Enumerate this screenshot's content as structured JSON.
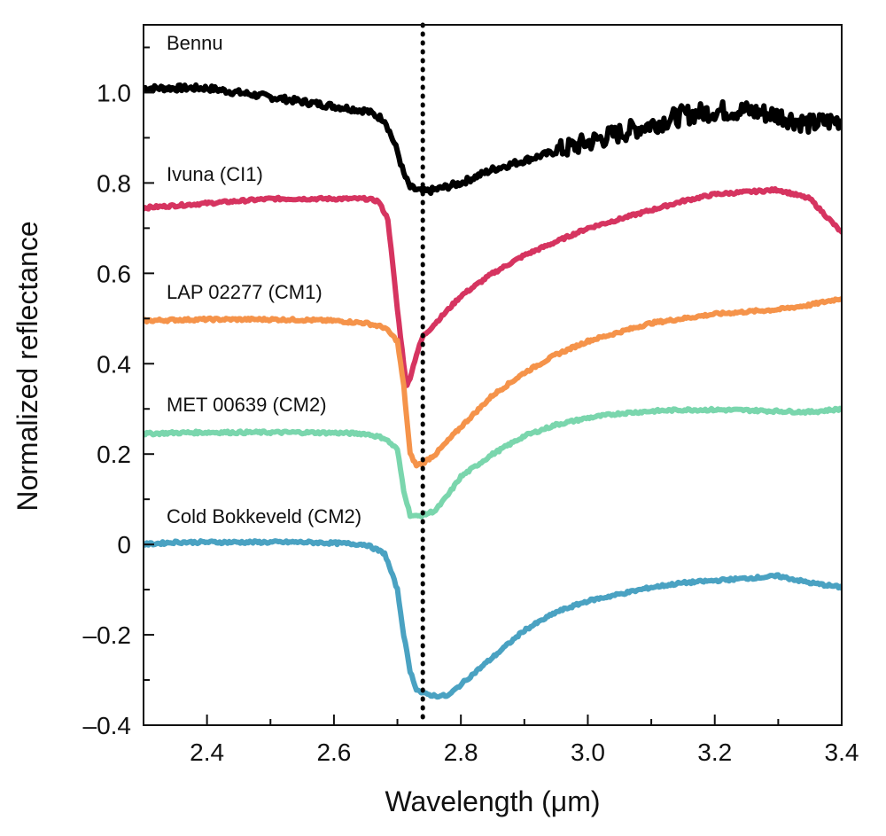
{
  "chart_data": {
    "type": "line",
    "xlabel": "Wavelength (μm)",
    "ylabel": "Normalized reflectance",
    "xlim": [
      2.3,
      3.4
    ],
    "ylim": [
      -0.4,
      1.15
    ],
    "x_ticks": [
      2.4,
      2.6,
      2.8,
      3.0,
      3.2,
      3.4
    ],
    "x_tick_labels": [
      "2.4",
      "2.6",
      "2.8",
      "3.0",
      "3.2",
      "3.4"
    ],
    "y_ticks": [
      1.0,
      0.8,
      0.6,
      0.4,
      0.2,
      0,
      -0.2,
      -0.4
    ],
    "y_tick_labels": [
      "1.0",
      "0.8",
      "0.6",
      "0.4",
      "0.2",
      "0",
      "–0.2",
      "–0.4"
    ],
    "grid": false,
    "reference_line": {
      "x": 2.74,
      "style": "dotted"
    },
    "series": [
      {
        "name": "Bennu",
        "color": "#000000",
        "noisy": true,
        "x": [
          2.3,
          2.35,
          2.4,
          2.45,
          2.5,
          2.55,
          2.6,
          2.65,
          2.68,
          2.7,
          2.71,
          2.72,
          2.73,
          2.74,
          2.76,
          2.8,
          2.85,
          2.9,
          2.95,
          3.0,
          3.05,
          3.1,
          3.15,
          3.2,
          3.25,
          3.3,
          3.35,
          3.4
        ],
        "y": [
          1.01,
          1.01,
          1.01,
          1.0,
          0.99,
          0.98,
          0.97,
          0.96,
          0.94,
          0.87,
          0.82,
          0.79,
          0.785,
          0.78,
          0.785,
          0.8,
          0.83,
          0.85,
          0.87,
          0.89,
          0.91,
          0.93,
          0.95,
          0.96,
          0.96,
          0.95,
          0.93,
          0.94
        ]
      },
      {
        "name": "Ivuna (CI1)",
        "color": "#d63460",
        "noisy": false,
        "x": [
          2.3,
          2.35,
          2.4,
          2.45,
          2.5,
          2.55,
          2.6,
          2.65,
          2.67,
          2.685,
          2.7,
          2.71,
          2.715,
          2.72,
          2.73,
          2.74,
          2.76,
          2.8,
          2.85,
          2.9,
          2.95,
          3.0,
          3.05,
          3.1,
          3.15,
          3.2,
          3.25,
          3.3,
          3.35,
          3.38,
          3.4
        ],
        "y": [
          0.745,
          0.75,
          0.755,
          0.76,
          0.765,
          0.765,
          0.765,
          0.765,
          0.76,
          0.72,
          0.52,
          0.4,
          0.35,
          0.37,
          0.42,
          0.46,
          0.49,
          0.55,
          0.6,
          0.64,
          0.67,
          0.7,
          0.72,
          0.74,
          0.76,
          0.775,
          0.78,
          0.785,
          0.765,
          0.72,
          0.69
        ]
      },
      {
        "name": "LAP 02277 (CM1)",
        "color": "#f5934a",
        "noisy": false,
        "x": [
          2.3,
          2.35,
          2.4,
          2.45,
          2.5,
          2.55,
          2.6,
          2.65,
          2.68,
          2.7,
          2.71,
          2.72,
          2.73,
          2.74,
          2.76,
          2.8,
          2.85,
          2.9,
          2.95,
          3.0,
          3.05,
          3.1,
          3.15,
          3.2,
          3.25,
          3.3,
          3.35,
          3.4
        ],
        "y": [
          0.495,
          0.497,
          0.498,
          0.498,
          0.498,
          0.497,
          0.495,
          0.49,
          0.48,
          0.45,
          0.35,
          0.2,
          0.175,
          0.18,
          0.2,
          0.26,
          0.33,
          0.38,
          0.42,
          0.45,
          0.47,
          0.49,
          0.5,
          0.51,
          0.515,
          0.52,
          0.53,
          0.545
        ]
      },
      {
        "name": "MET 00639 (CM2)",
        "color": "#7ad6ad",
        "noisy": false,
        "x": [
          2.3,
          2.35,
          2.4,
          2.45,
          2.5,
          2.55,
          2.6,
          2.65,
          2.68,
          2.7,
          2.71,
          2.72,
          2.73,
          2.74,
          2.76,
          2.78,
          2.8,
          2.85,
          2.9,
          2.95,
          3.0,
          3.05,
          3.1,
          3.15,
          3.2,
          3.25,
          3.3,
          3.35,
          3.4
        ],
        "y": [
          0.245,
          0.247,
          0.248,
          0.248,
          0.248,
          0.248,
          0.247,
          0.245,
          0.235,
          0.21,
          0.12,
          0.065,
          0.062,
          0.065,
          0.075,
          0.11,
          0.15,
          0.2,
          0.24,
          0.265,
          0.28,
          0.29,
          0.295,
          0.298,
          0.298,
          0.297,
          0.295,
          0.293,
          0.3
        ]
      },
      {
        "name": "Cold Bokkeveld (CM2)",
        "color": "#4aa2c2",
        "noisy": false,
        "x": [
          2.3,
          2.35,
          2.4,
          2.45,
          2.5,
          2.55,
          2.6,
          2.65,
          2.68,
          2.7,
          2.71,
          2.72,
          2.73,
          2.74,
          2.76,
          2.78,
          2.8,
          2.85,
          2.9,
          2.95,
          3.0,
          3.05,
          3.1,
          3.15,
          3.2,
          3.25,
          3.3,
          3.35,
          3.4
        ],
        "y": [
          0.0,
          0.005,
          0.005,
          0.005,
          0.005,
          0.005,
          0.003,
          0.0,
          -0.02,
          -0.1,
          -0.2,
          -0.28,
          -0.32,
          -0.33,
          -0.335,
          -0.335,
          -0.31,
          -0.25,
          -0.19,
          -0.15,
          -0.125,
          -0.11,
          -0.095,
          -0.085,
          -0.08,
          -0.075,
          -0.07,
          -0.085,
          -0.095
        ]
      }
    ]
  }
}
